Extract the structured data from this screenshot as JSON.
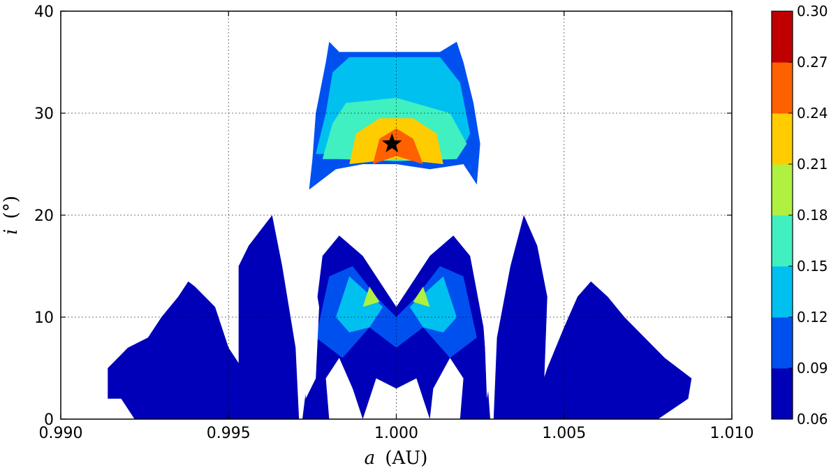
{
  "chart_data": {
    "type": "heatmap",
    "title": "",
    "xlabel": "a (AU)",
    "xlabel_parts": {
      "var": "a",
      "unit": "(AU)"
    },
    "ylabel": "i (°)",
    "ylabel_parts": {
      "var": "i",
      "unit": "(°)"
    },
    "xlim": [
      0.99,
      1.01
    ],
    "ylim": [
      0,
      40
    ],
    "xticks": [
      0.99,
      0.995,
      1.0,
      1.005,
      1.01
    ],
    "xtick_labels": [
      "0.990",
      "0.995",
      "1.000",
      "1.005",
      "1.010"
    ],
    "yticks": [
      0,
      10,
      20,
      30,
      40
    ],
    "ytick_labels": [
      "0",
      "10",
      "20",
      "30",
      "40"
    ],
    "grid": true,
    "colorbar": {
      "levels": [
        0.06,
        0.09,
        0.12,
        0.15,
        0.18,
        0.21,
        0.24,
        0.27,
        0.3
      ],
      "labels": [
        "0.06",
        "0.09",
        "0.12",
        "0.15",
        "0.18",
        "0.21",
        "0.24",
        "0.27",
        "0.30"
      ],
      "colors": [
        "#0000b8",
        "#0050f0",
        "#00c0f0",
        "#40f0c0",
        "#b0f040",
        "#ffcc00",
        "#ff6000",
        "#c00000"
      ]
    },
    "marker": {
      "a": 0.99987,
      "i": 27.0,
      "symbol": "star",
      "color": "#000000"
    },
    "regions": [
      {
        "name": "upper-band",
        "level": 1,
        "points": [
          [
            0.9974,
            22.5
          ],
          [
            0.9975,
            25.5
          ],
          [
            0.9976,
            30
          ],
          [
            0.9979,
            35
          ],
          [
            0.998,
            37
          ],
          [
            0.9983,
            36
          ],
          [
            0.9987,
            36
          ],
          [
            1.0013,
            36
          ],
          [
            1.0018,
            37
          ],
          [
            1.002,
            35
          ],
          [
            1.0023,
            31
          ],
          [
            1.0025,
            27
          ],
          [
            1.0024,
            23
          ],
          [
            1.002,
            25
          ],
          [
            1.001,
            24.5
          ],
          [
            1.0,
            25
          ],
          [
            0.999,
            25
          ],
          [
            0.9982,
            24.5
          ]
        ]
      },
      {
        "name": "upper-inner",
        "level": 2,
        "points": [
          [
            0.9976,
            26
          ],
          [
            0.9979,
            30
          ],
          [
            0.9981,
            34
          ],
          [
            0.9986,
            35.5
          ],
          [
            1.0013,
            35.5
          ],
          [
            1.0019,
            33
          ],
          [
            1.0022,
            28
          ],
          [
            1.0019,
            26
          ],
          [
            1.0,
            25.5
          ],
          [
            0.9985,
            26
          ]
        ]
      },
      {
        "name": "upper-core",
        "level": 3,
        "points": [
          [
            0.9978,
            25.5
          ],
          [
            0.9981,
            29
          ],
          [
            0.9985,
            31
          ],
          [
            1.0,
            31.5
          ],
          [
            1.0016,
            30
          ],
          [
            1.0021,
            27
          ],
          [
            1.0018,
            25.5
          ],
          [
            1.0,
            25.3
          ],
          [
            0.9983,
            25.5
          ]
        ]
      },
      {
        "name": "upper-hot",
        "level": 5,
        "points": [
          [
            0.9986,
            25
          ],
          [
            0.9988,
            28
          ],
          [
            0.9995,
            29.5
          ],
          [
            1.0005,
            29.5
          ],
          [
            1.0012,
            28
          ],
          [
            1.0014,
            25
          ],
          [
            1.0,
            25.5
          ]
        ]
      },
      {
        "name": "upper-peak",
        "level": 6,
        "points": [
          [
            0.9993,
            25
          ],
          [
            0.9995,
            27.5
          ],
          [
            1.0,
            28.5
          ],
          [
            1.0005,
            27.5
          ],
          [
            1.0008,
            25
          ],
          [
            1.0,
            25.8
          ]
        ]
      },
      {
        "name": "lower-left",
        "level": 0,
        "points": [
          [
            0.9914,
            2
          ],
          [
            0.9914,
            5
          ],
          [
            0.9917,
            6
          ],
          [
            0.992,
            7
          ],
          [
            0.9926,
            8
          ],
          [
            0.993,
            10
          ],
          [
            0.9935,
            12
          ],
          [
            0.9938,
            13.5
          ],
          [
            0.994,
            13
          ],
          [
            0.9946,
            11
          ],
          [
            0.995,
            7
          ],
          [
            0.9954,
            5
          ],
          [
            0.9957,
            7
          ],
          [
            0.996,
            0
          ],
          [
            0.9922,
            0
          ],
          [
            0.9918,
            2
          ]
        ]
      },
      {
        "name": "lower-left-hump",
        "level": 0,
        "points": [
          [
            0.9953,
            3
          ],
          [
            0.9953,
            15
          ],
          [
            0.9956,
            17
          ],
          [
            0.9963,
            20
          ],
          [
            0.9966,
            15
          ],
          [
            0.997,
            7
          ],
          [
            0.9971,
            0
          ],
          [
            0.9955,
            0
          ]
        ]
      },
      {
        "name": "lower-right-hump",
        "level": 0,
        "points": [
          [
            1.0029,
            0
          ],
          [
            1.003,
            8
          ],
          [
            1.0034,
            15
          ],
          [
            1.0038,
            20
          ],
          [
            1.0042,
            17
          ],
          [
            1.0045,
            12
          ],
          [
            1.0044,
            3
          ],
          [
            1.0045,
            0
          ]
        ]
      },
      {
        "name": "lower-right",
        "level": 0,
        "points": [
          [
            1.004,
            0
          ],
          [
            1.0045,
            5
          ],
          [
            1.005,
            9
          ],
          [
            1.0054,
            12
          ],
          [
            1.0058,
            13.5
          ],
          [
            1.0063,
            12
          ],
          [
            1.0068,
            10
          ],
          [
            1.0074,
            8
          ],
          [
            1.008,
            6
          ],
          [
            1.0084,
            5
          ],
          [
            1.0088,
            4
          ],
          [
            1.0087,
            2
          ],
          [
            1.0078,
            0
          ]
        ]
      },
      {
        "name": "lower-center",
        "level": 0,
        "points": [
          [
            0.9972,
            0
          ],
          [
            0.9975,
            8
          ],
          [
            0.9978,
            16
          ],
          [
            0.9983,
            18
          ],
          [
            0.999,
            16
          ],
          [
            0.9996,
            13
          ],
          [
            1.0,
            11
          ],
          [
            1.0004,
            13
          ],
          [
            1.001,
            16
          ],
          [
            1.0017,
            18
          ],
          [
            1.0022,
            16
          ],
          [
            1.0026,
            9
          ],
          [
            1.0028,
            0
          ],
          [
            1.001,
            0
          ],
          [
            1.0006,
            4
          ],
          [
            1.0,
            3
          ],
          [
            0.9994,
            4
          ],
          [
            0.999,
            0
          ]
        ]
      },
      {
        "name": "lower-center-a",
        "level": 1,
        "points": [
          [
            0.9976,
            8
          ],
          [
            0.998,
            14
          ],
          [
            0.9987,
            15
          ],
          [
            0.9994,
            12
          ],
          [
            1.0,
            10
          ],
          [
            1.0006,
            12
          ],
          [
            1.0013,
            15
          ],
          [
            1.002,
            14
          ],
          [
            1.0024,
            8
          ],
          [
            1.0016,
            6
          ],
          [
            1.0008,
            9
          ],
          [
            1.0,
            7
          ],
          [
            0.9992,
            9
          ],
          [
            0.9984,
            6
          ]
        ]
      },
      {
        "name": "lower-center-b",
        "level": 2,
        "points": [
          [
            0.9982,
            10
          ],
          [
            0.9986,
            14
          ],
          [
            0.9991,
            12.5
          ],
          [
            0.9996,
            11
          ],
          [
            0.9992,
            9
          ],
          [
            0.9986,
            8.5
          ]
        ]
      },
      {
        "name": "lower-center-c",
        "level": 2,
        "points": [
          [
            1.0004,
            11
          ],
          [
            1.0009,
            12.5
          ],
          [
            1.0014,
            14
          ],
          [
            1.0018,
            10
          ],
          [
            1.0014,
            8.5
          ],
          [
            1.0008,
            9
          ]
        ]
      },
      {
        "name": "lower-center-d",
        "level": 4,
        "points": [
          [
            0.999,
            11
          ],
          [
            0.9992,
            13
          ],
          [
            0.9995,
            11.5
          ]
        ]
      },
      {
        "name": "lower-center-e",
        "level": 4,
        "points": [
          [
            1.0005,
            11.5
          ],
          [
            1.0008,
            13
          ],
          [
            1.001,
            11
          ]
        ]
      }
    ],
    "holes": [
      [
        [
          0.998,
          0
        ],
        [
          0.9979,
          4
        ],
        [
          0.9983,
          6
        ],
        [
          0.9987,
          3
        ],
        [
          0.999,
          0
        ]
      ],
      [
        [
          1.001,
          0
        ],
        [
          1.0011,
          3
        ],
        [
          1.0016,
          6
        ],
        [
          1.002,
          4
        ],
        [
          1.0019,
          0
        ]
      ],
      [
        [
          0.9973,
          2
        ],
        [
          0.9972,
          9
        ],
        [
          0.9974,
          17
        ],
        [
          0.9977,
          11
        ],
        [
          0.9976,
          4
        ]
      ],
      [
        [
          1.0027,
          2
        ],
        [
          1.0026,
          11
        ],
        [
          1.0028,
          17
        ],
        [
          1.0029,
          9
        ],
        [
          1.0028,
          4
        ]
      ]
    ]
  }
}
